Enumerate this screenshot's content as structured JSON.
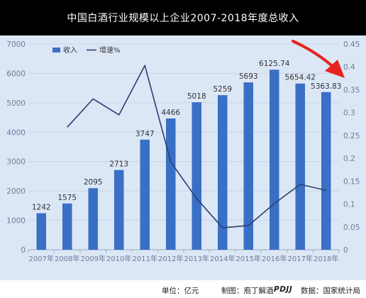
{
  "chart_data": {
    "type": "bar+line",
    "title": "中国白酒行业规模以上企业2007-2018年度总收入",
    "categories": [
      "2007年",
      "2008年",
      "2009年",
      "2010年",
      "2011年",
      "2012年",
      "2013年",
      "2014年",
      "2015年",
      "2016年",
      "2017年",
      "2018年"
    ],
    "series": [
      {
        "name": "收入",
        "type": "bar",
        "axis": "left",
        "color": "#3a6fc6",
        "values": [
          1242,
          1575,
          2095,
          2713,
          3747,
          4466,
          5018,
          5259,
          5693,
          6125.74,
          5654.42,
          5363.83
        ],
        "labels": [
          "1242",
          "1575",
          "2095",
          "2713",
          "3747",
          "4466",
          "5018",
          "5259",
          "5693",
          "6125.74",
          "5654.42",
          "5363.83"
        ]
      },
      {
        "name": "增速%",
        "type": "line",
        "axis": "right",
        "color": "#2b3f6e",
        "values": [
          null,
          0.268,
          0.33,
          0.295,
          0.403,
          0.192,
          0.112,
          0.048,
          0.053,
          0.101,
          0.143,
          0.13
        ]
      }
    ],
    "y_left": {
      "min": 0,
      "max": 7000,
      "step": 1000,
      "ticks": [
        "0",
        "1000",
        "2000",
        "3000",
        "4000",
        "5000",
        "6000",
        "7000"
      ]
    },
    "y_right": {
      "min": 0,
      "max": 0.45,
      "step": 0.05,
      "ticks": [
        "0",
        "0.05",
        "0.1",
        "0.15",
        "0.2",
        "0.25",
        "0.3",
        "0.35",
        "0.4",
        "0.45"
      ]
    },
    "grid": "horizontal",
    "legend_position": "top-left",
    "background_color": "#dce7f6",
    "annotation": {
      "type": "arrow",
      "color": "#e8231f",
      "points_to": "right axis"
    }
  },
  "footer": {
    "unit_label": "单位：亿元",
    "credit_label": "制图：庖丁解酒",
    "brand": "PDJJ",
    "source_label": "数据：国家统计局"
  }
}
